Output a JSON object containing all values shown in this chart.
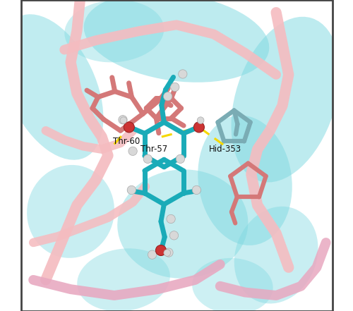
{
  "background_color": "#ffffff",
  "figsize": [
    5.0,
    4.41
  ],
  "dpi": 100,
  "labels": {
    "Thr-60": [
      0.295,
      0.538
    ],
    "Thr-57": [
      0.385,
      0.513
    ],
    "Hid-353": [
      0.605,
      0.513
    ]
  },
  "label_fontsize": 8.5,
  "label_color": "#111111",
  "hbond_color": "#f5d800",
  "hbond_lw": 2.0,
  "sheet_color": "#7dd8e0",
  "sheet_alpha": 0.52,
  "loop_color": "#f5bcc0",
  "loop_color2": "#e8a8c0",
  "ligand_color": "#1aabb8",
  "residue_color": "#d47878",
  "residue_color2": "#7aacb4",
  "hydrogen_color": "#d8d8d8",
  "oxygen_color": "#cc3333",
  "border_color": "#444444",
  "sheet_shapes": [
    [
      0.5,
      0.88,
      0.6,
      0.28,
      -8,
      0.5
    ],
    [
      0.1,
      0.72,
      0.28,
      0.5,
      25,
      0.48
    ],
    [
      0.85,
      0.68,
      0.32,
      0.55,
      -18,
      0.5
    ],
    [
      0.72,
      0.42,
      0.3,
      0.42,
      8,
      0.48
    ],
    [
      0.52,
      0.28,
      0.42,
      0.35,
      3,
      0.46
    ],
    [
      0.16,
      0.32,
      0.28,
      0.3,
      -12,
      0.42
    ],
    [
      0.82,
      0.18,
      0.26,
      0.32,
      -22,
      0.42
    ],
    [
      0.33,
      0.1,
      0.3,
      0.2,
      8,
      0.4
    ],
    [
      0.3,
      0.9,
      0.32,
      0.2,
      4,
      0.4
    ],
    [
      0.68,
      0.08,
      0.26,
      0.18,
      -4,
      0.38
    ]
  ]
}
